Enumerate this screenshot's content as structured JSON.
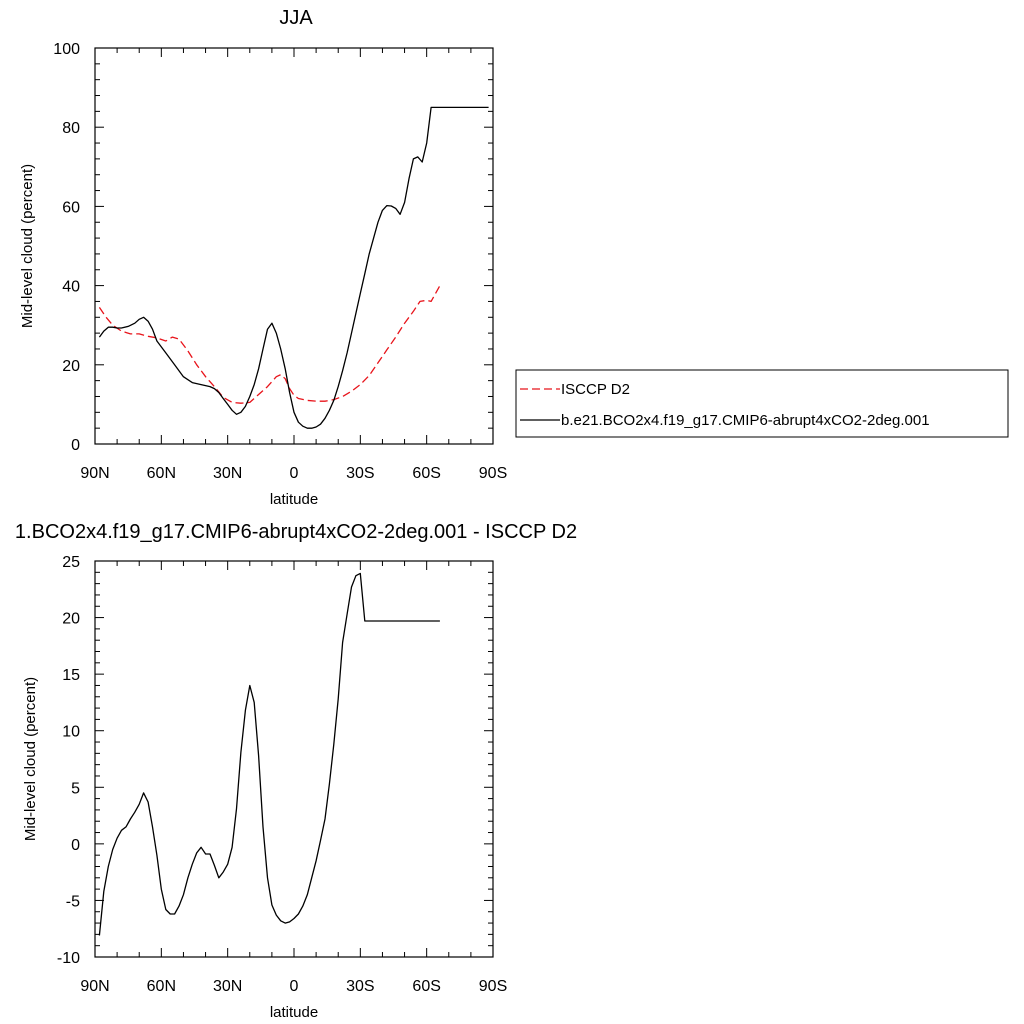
{
  "chart_data": [
    {
      "type": "line",
      "title": "JJA",
      "xlabel": "latitude",
      "ylabel": "Mid-level cloud (percent)",
      "xlim": [
        -90,
        90
      ],
      "ylim": [
        0,
        100
      ],
      "x_ticks": [
        {
          "value": -90,
          "label": "90N"
        },
        {
          "value": -60,
          "label": "60N"
        },
        {
          "value": -30,
          "label": "30N"
        },
        {
          "value": 0,
          "label": "0"
        },
        {
          "value": 30,
          "label": "30S"
        },
        {
          "value": 60,
          "label": "60S"
        },
        {
          "value": 90,
          "label": "90S"
        }
      ],
      "y_ticks": [
        0,
        20,
        40,
        60,
        80,
        100
      ],
      "legend": "right",
      "series": [
        {
          "name": "ISCCP D2",
          "color": "#e8141b",
          "style": "dashed",
          "x": [
            -88,
            -85,
            -82,
            -78,
            -74,
            -70,
            -66,
            -62,
            -58,
            -55,
            -52,
            -48,
            -44,
            -40,
            -36,
            -32,
            -28,
            -24,
            -20,
            -16,
            -12,
            -8,
            -6,
            -4,
            -2,
            0,
            2,
            6,
            10,
            14,
            18,
            22,
            26,
            30,
            34,
            38,
            42,
            46,
            50,
            54,
            57,
            60,
            62,
            64,
            66
          ],
          "y": [
            34.5,
            32,
            30,
            28.5,
            27.8,
            27.8,
            27.2,
            26.8,
            26,
            27,
            26.5,
            23.5,
            20,
            17,
            14.5,
            11.8,
            10.5,
            10.3,
            10.5,
            12.5,
            14.5,
            17,
            17.5,
            16.5,
            14,
            12.3,
            11.5,
            11,
            10.8,
            10.8,
            11.2,
            12,
            13.3,
            15,
            17.3,
            20.5,
            23.8,
            27,
            30.5,
            33.5,
            36,
            36.3,
            36,
            38,
            40
          ]
        },
        {
          "name": "b.e21.BCO2x4.f19_g17.CMIP6-abrupt4xCO2-2deg.001",
          "color": "#000000",
          "style": "solid",
          "x": [
            -88,
            -86,
            -84,
            -82,
            -80,
            -78,
            -75,
            -72,
            -70,
            -68,
            -66,
            -64,
            -62,
            -58,
            -54,
            -50,
            -46,
            -42,
            -38,
            -36,
            -34,
            -32,
            -30,
            -28,
            -26,
            -24,
            -22,
            -20,
            -18,
            -16,
            -14,
            -12,
            -10,
            -8,
            -6,
            -4,
            -2,
            0,
            2,
            4,
            6,
            8,
            10,
            12,
            14,
            16,
            18,
            20,
            22,
            24,
            26,
            28,
            30,
            32,
            34,
            36,
            38,
            40,
            42,
            44,
            46,
            48,
            50,
            52,
            54,
            56,
            58,
            60,
            62,
            64,
            66,
            68,
            70,
            72,
            74,
            76,
            78,
            80,
            82,
            84,
            86,
            88
          ],
          "y": [
            27,
            28.5,
            29.5,
            29.5,
            29.3,
            29.3,
            29.7,
            30.5,
            31.5,
            32,
            31,
            29,
            26,
            23,
            20,
            17,
            15.5,
            15,
            14.5,
            14,
            13,
            11.5,
            10,
            8.5,
            7.5,
            8,
            9.5,
            12,
            15,
            19,
            24,
            29,
            30.5,
            28,
            24,
            19,
            13,
            8,
            5.5,
            4.5,
            4,
            4,
            4.3,
            5,
            6.5,
            8.5,
            11,
            14.5,
            18.5,
            23,
            28,
            33,
            38,
            43,
            48,
            52,
            56,
            59,
            60.2,
            60.1,
            59.5,
            58,
            61,
            67,
            72,
            72.5,
            71.2,
            76,
            85,
            85,
            85,
            85,
            85,
            85,
            85,
            85,
            85,
            85,
            85,
            85,
            85,
            85
          ]
        }
      ]
    },
    {
      "type": "line",
      "title": "1.BCO2x4.f19_g17.CMIP6-abrupt4xCO2-2deg.001 - ISCCP D2",
      "xlabel": "latitude",
      "ylabel": "Mid-level cloud (percent)",
      "xlim": [
        -90,
        90
      ],
      "ylim": [
        -10,
        25
      ],
      "x_ticks": [
        {
          "value": -90,
          "label": "90N"
        },
        {
          "value": -60,
          "label": "60N"
        },
        {
          "value": -30,
          "label": "30N"
        },
        {
          "value": 0,
          "label": "0"
        },
        {
          "value": 30,
          "label": "30S"
        },
        {
          "value": 60,
          "label": "60S"
        },
        {
          "value": 90,
          "label": "90S"
        }
      ],
      "y_ticks": [
        -10,
        -5,
        0,
        5,
        10,
        15,
        20,
        25
      ],
      "series": [
        {
          "color": "#000000",
          "style": "solid",
          "x": [
            -88,
            -86,
            -84,
            -82,
            -80,
            -78,
            -76,
            -74,
            -72,
            -70,
            -68,
            -66,
            -64,
            -62,
            -60,
            -58,
            -56,
            -54,
            -52,
            -50,
            -48,
            -46,
            -44,
            -42,
            -40,
            -38,
            -36,
            -34,
            -32,
            -30,
            -28,
            -26,
            -24,
            -22,
            -20,
            -18,
            -16,
            -14,
            -12,
            -10,
            -8,
            -6,
            -4,
            -2,
            0,
            2,
            4,
            6,
            8,
            10,
            12,
            14,
            16,
            18,
            20,
            22,
            24,
            26,
            28,
            30,
            32,
            34,
            36,
            38,
            40,
            42,
            44,
            46,
            48,
            50,
            52,
            54,
            56,
            58,
            60,
            62,
            64,
            66
          ],
          "y": [
            -8.1,
            -4.2,
            -2,
            -0.5,
            0.5,
            1.2,
            1.5,
            2.2,
            2.8,
            3.5,
            4.5,
            3.7,
            1.5,
            -1,
            -4,
            -5.8,
            -6.2,
            -6.2,
            -5.5,
            -4.5,
            -3,
            -1.8,
            -0.8,
            -0.3,
            -0.9,
            -0.9,
            -1.9,
            -3,
            -2.5,
            -1.8,
            -0.3,
            3.1,
            8.1,
            11.8,
            14,
            12.5,
            7.8,
            1.5,
            -3,
            -5.4,
            -6.3,
            -6.8,
            -7,
            -6.9,
            -6.6,
            -6.2,
            -5.5,
            -4.5,
            -3,
            -1.5,
            0.3,
            2.2,
            5.3,
            8.8,
            12.8,
            17.8,
            20.3,
            22.7,
            23.7,
            23.9,
            19.7,
            19.7,
            19.7,
            19.7,
            19.7,
            19.7,
            19.7,
            19.7,
            19.7,
            19.7,
            19.7,
            19.7,
            19.7,
            19.7,
            19.7,
            19.7,
            19.7,
            19.7
          ]
        }
      ]
    }
  ]
}
